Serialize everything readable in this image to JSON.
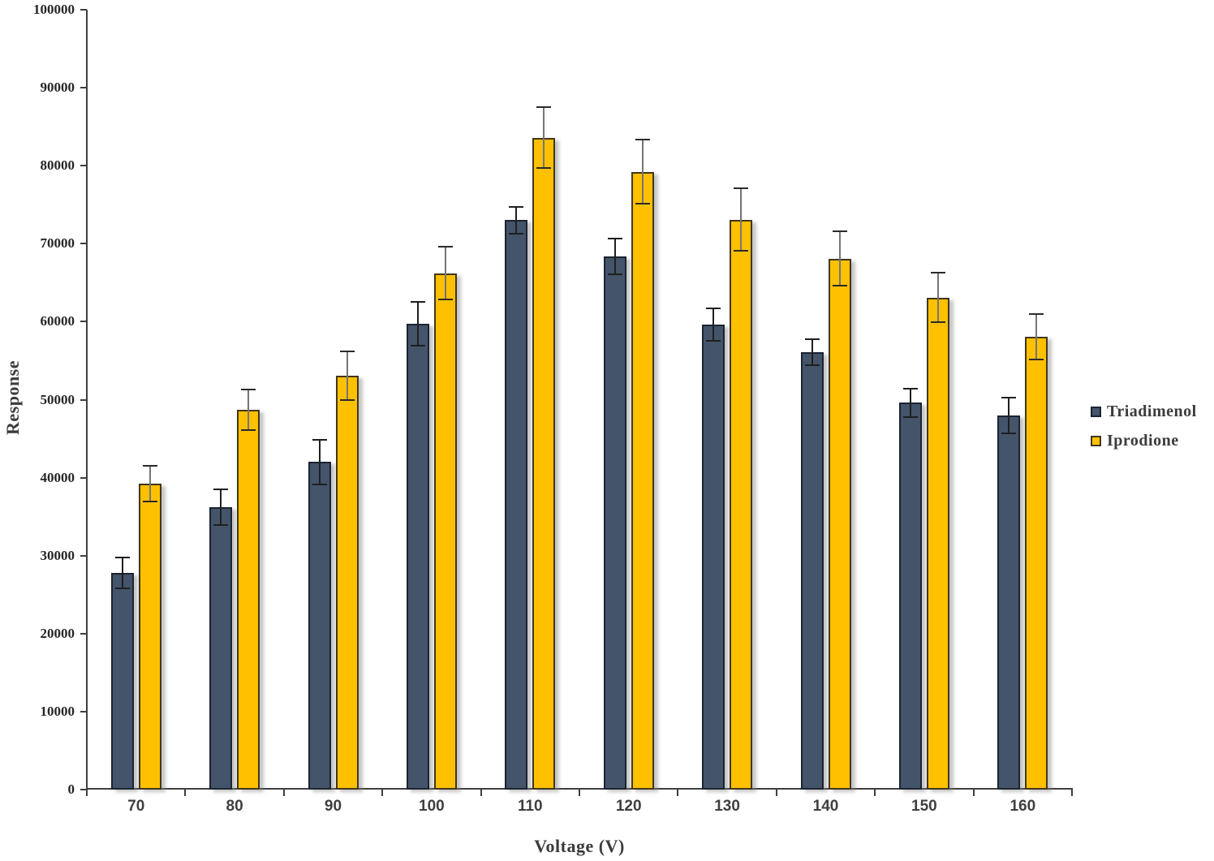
{
  "page": {
    "background": "#ffffff"
  },
  "chart_data": {
    "type": "bar",
    "title": "",
    "xlabel": "Voltage (V)",
    "ylabel": "Response",
    "categories": [
      "70",
      "80",
      "90",
      "100",
      "110",
      "120",
      "130",
      "140",
      "150",
      "160"
    ],
    "series": [
      {
        "name": "Triadimenol",
        "color": "#44546A",
        "border_color": "#1C2431",
        "error_line_color": "#1F1F1F",
        "error_cap_color": "#1F1F1F",
        "values": [
          27800,
          36200,
          42000,
          59700,
          73000,
          68400,
          59600,
          56100,
          49600,
          48000
        ],
        "errors": [
          2000,
          2300,
          2900,
          2800,
          1700,
          2300,
          2100,
          1700,
          1800,
          2300
        ]
      },
      {
        "name": "Iprodione",
        "color": "#FFC000",
        "border_color": "#41371B",
        "error_line_color": "#757575",
        "error_cap_color": "#2B2B2B",
        "values": [
          39200,
          48700,
          53100,
          66200,
          83600,
          79200,
          73100,
          68100,
          63100,
          58100
        ],
        "errors": [
          2300,
          2600,
          3100,
          3400,
          3900,
          4100,
          4000,
          3500,
          3200,
          2900
        ]
      }
    ],
    "ylim": [
      0,
      100000
    ],
    "ytick_step": 10000,
    "y_tick_labels": [
      "0",
      "10000",
      "20000",
      "30000",
      "40000",
      "50000",
      "60000",
      "70000",
      "80000",
      "90000",
      "100000"
    ],
    "grid": false,
    "legend_position": "right",
    "axis_color": "#3F3F3F",
    "tick_label_color": "#262626"
  }
}
